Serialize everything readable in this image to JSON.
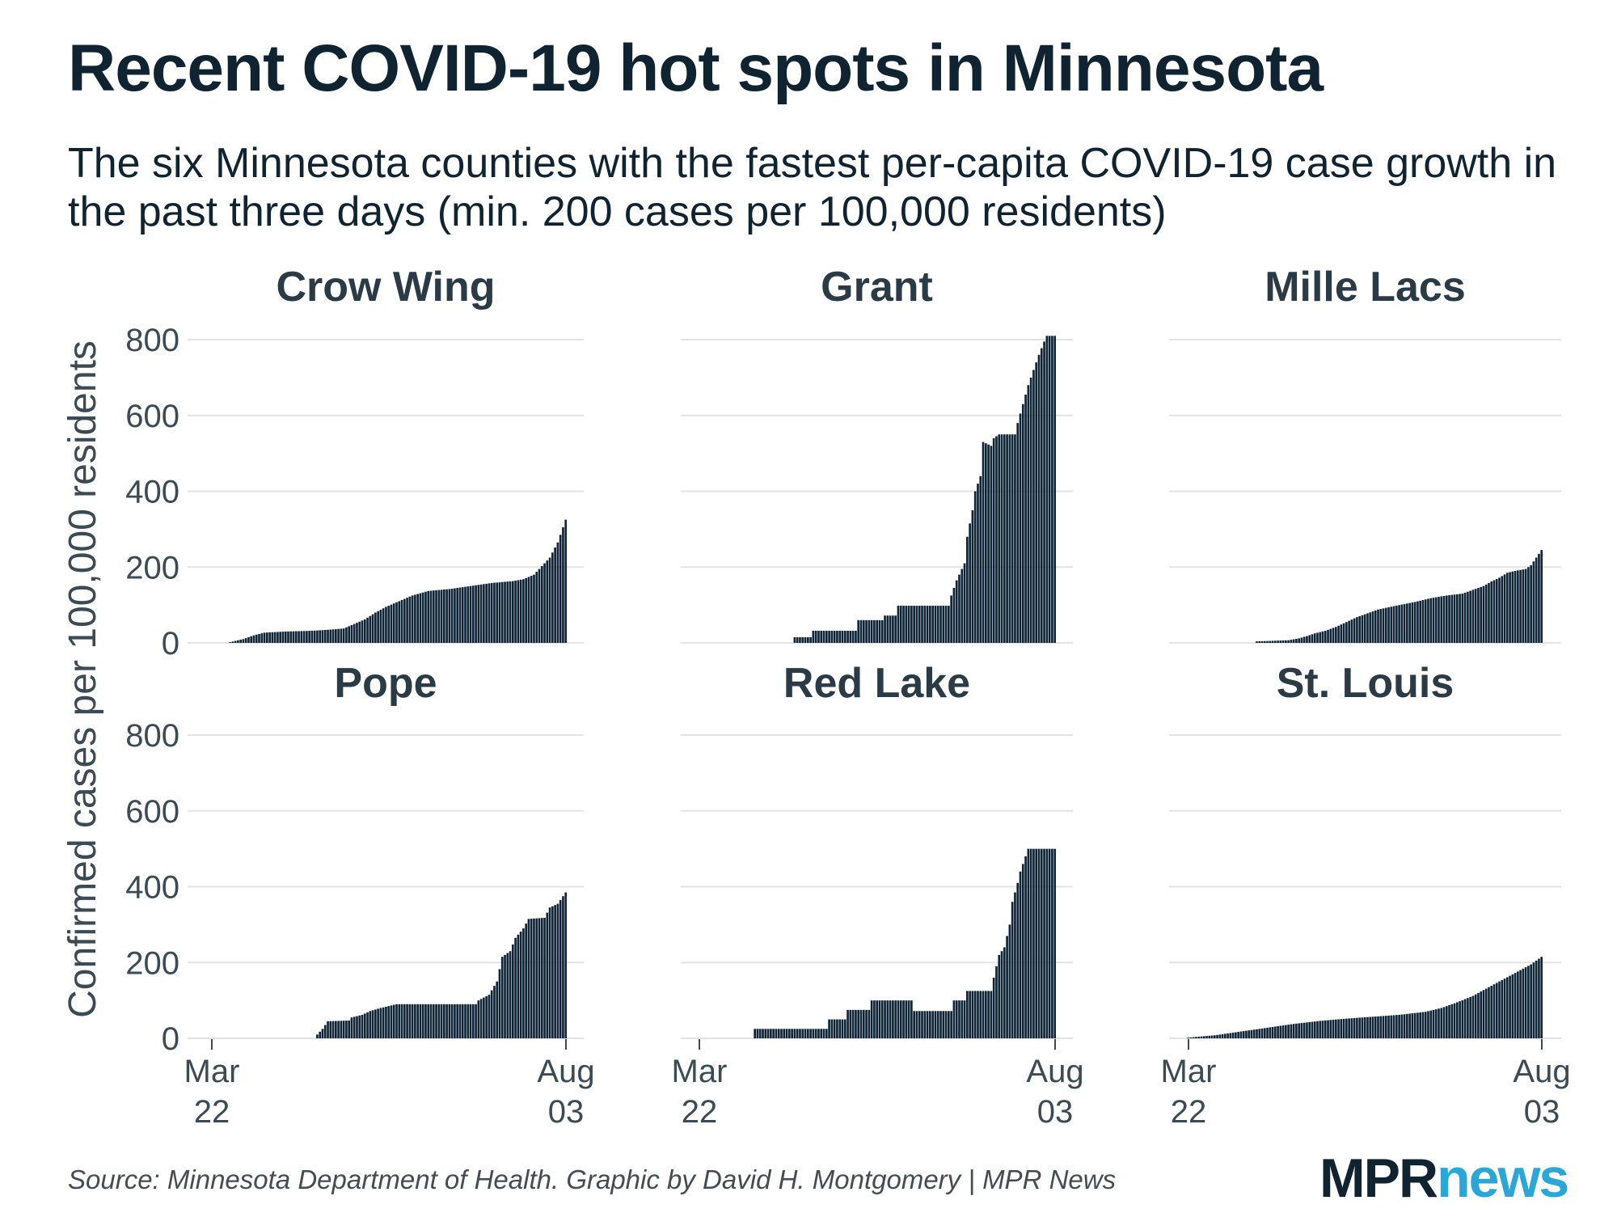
{
  "title": "Recent COVID-19 hot spots in Minnesota",
  "subtitle": "The six Minnesota counties with the fastest per-capita COVID-19 case growth in the past three days (min. 200 cases per 100,000 residents)",
  "source": "Source: Minnesota Department of Health. Graphic by David H. Montgomery | MPR News",
  "logo": {
    "part1": "MPR",
    "part2": "news"
  },
  "colors": {
    "bar": "#0f2537",
    "grid": "#e3e3e3",
    "text": "#0f2330",
    "accent": "#2aa7d6"
  },
  "chart_data": {
    "type": "bar",
    "title": "Recent COVID-19 hot spots in Minnesota",
    "ylabel": "Confirmed cases per 100,000 residents",
    "xlabel": "",
    "ylim": [
      0,
      800
    ],
    "yticks": [
      "0",
      "200",
      "400",
      "600",
      "800"
    ],
    "xtick_labels": [
      [
        "Mar",
        "22"
      ],
      [
        "Aug",
        "03"
      ]
    ],
    "panels": [
      {
        "name": "Crow Wing",
        "start_day": 7,
        "end_day": 134,
        "keypoints": [
          [
            7,
            2
          ],
          [
            12,
            10
          ],
          [
            16,
            20
          ],
          [
            20,
            27
          ],
          [
            28,
            30
          ],
          [
            38,
            32
          ],
          [
            45,
            35
          ],
          [
            50,
            38
          ],
          [
            54,
            50
          ],
          [
            58,
            62
          ],
          [
            62,
            80
          ],
          [
            66,
            95
          ],
          [
            71,
            110
          ],
          [
            76,
            125
          ],
          [
            82,
            137
          ],
          [
            90,
            142
          ],
          [
            98,
            150
          ],
          [
            106,
            158
          ],
          [
            114,
            163
          ],
          [
            118,
            168
          ],
          [
            122,
            180
          ],
          [
            124,
            195
          ],
          [
            128,
            225
          ],
          [
            131,
            265
          ],
          [
            133,
            305
          ],
          [
            134,
            325
          ]
        ]
      },
      {
        "name": "Grant",
        "start_day": 36,
        "end_day": 134,
        "keypoints": [
          [
            36,
            15
          ],
          [
            42,
            15
          ],
          [
            43,
            32
          ],
          [
            59,
            32
          ],
          [
            60,
            60
          ],
          [
            69,
            60
          ],
          [
            70,
            72
          ],
          [
            74,
            72
          ],
          [
            75,
            98
          ],
          [
            94,
            98
          ],
          [
            95,
            125
          ],
          [
            97,
            165
          ],
          [
            100,
            210
          ],
          [
            101,
            280
          ],
          [
            103,
            350
          ],
          [
            104,
            400
          ],
          [
            106,
            440
          ],
          [
            107,
            530
          ],
          [
            110,
            520
          ],
          [
            111,
            540
          ],
          [
            113,
            550
          ],
          [
            119,
            550
          ],
          [
            120,
            580
          ],
          [
            122,
            630
          ],
          [
            124,
            680
          ],
          [
            126,
            720
          ],
          [
            128,
            760
          ],
          [
            130,
            795
          ],
          [
            131,
            810
          ],
          [
            134,
            810
          ]
        ]
      },
      {
        "name": "Mille Lacs",
        "start_day": 26,
        "end_day": 134,
        "keypoints": [
          [
            26,
            4
          ],
          [
            38,
            7
          ],
          [
            42,
            12
          ],
          [
            45,
            18
          ],
          [
            48,
            25
          ],
          [
            52,
            32
          ],
          [
            56,
            42
          ],
          [
            60,
            55
          ],
          [
            64,
            68
          ],
          [
            68,
            78
          ],
          [
            72,
            88
          ],
          [
            78,
            97
          ],
          [
            86,
            108
          ],
          [
            92,
            118
          ],
          [
            98,
            125
          ],
          [
            104,
            130
          ],
          [
            108,
            140
          ],
          [
            112,
            150
          ],
          [
            115,
            162
          ],
          [
            118,
            172
          ],
          [
            121,
            185
          ],
          [
            124,
            190
          ],
          [
            128,
            195
          ],
          [
            130,
            205
          ],
          [
            132,
            225
          ],
          [
            134,
            245
          ]
        ]
      },
      {
        "name": "Pope",
        "start_day": 40,
        "end_day": 134,
        "keypoints": [
          [
            40,
            10
          ],
          [
            42,
            25
          ],
          [
            44,
            45
          ],
          [
            52,
            47
          ],
          [
            53,
            55
          ],
          [
            57,
            62
          ],
          [
            60,
            72
          ],
          [
            64,
            80
          ],
          [
            70,
            90
          ],
          [
            100,
            90
          ],
          [
            101,
            100
          ],
          [
            105,
            115
          ],
          [
            108,
            150
          ],
          [
            110,
            215
          ],
          [
            113,
            230
          ],
          [
            115,
            265
          ],
          [
            118,
            290
          ],
          [
            120,
            315
          ],
          [
            126,
            318
          ],
          [
            128,
            345
          ],
          [
            131,
            355
          ],
          [
            134,
            385
          ]
        ]
      },
      {
        "name": "Red Lake",
        "start_day": 21,
        "end_day": 134,
        "keypoints": [
          [
            21,
            25
          ],
          [
            48,
            25
          ],
          [
            49,
            50
          ],
          [
            55,
            50
          ],
          [
            56,
            75
          ],
          [
            64,
            75
          ],
          [
            65,
            100
          ],
          [
            80,
            100
          ],
          [
            81,
            72
          ],
          [
            95,
            72
          ],
          [
            96,
            100
          ],
          [
            100,
            100
          ],
          [
            101,
            125
          ],
          [
            110,
            125
          ],
          [
            111,
            160
          ],
          [
            113,
            220
          ],
          [
            115,
            240
          ],
          [
            117,
            300
          ],
          [
            118,
            360
          ],
          [
            120,
            410
          ],
          [
            121,
            440
          ],
          [
            123,
            480
          ],
          [
            124,
            500
          ],
          [
            134,
            500
          ]
        ]
      },
      {
        "name": "St. Louis",
        "start_day": 0,
        "end_day": 134,
        "keypoints": [
          [
            0,
            2
          ],
          [
            10,
            8
          ],
          [
            20,
            18
          ],
          [
            30,
            28
          ],
          [
            40,
            38
          ],
          [
            50,
            46
          ],
          [
            60,
            52
          ],
          [
            70,
            57
          ],
          [
            80,
            62
          ],
          [
            90,
            70
          ],
          [
            96,
            80
          ],
          [
            102,
            95
          ],
          [
            108,
            112
          ],
          [
            114,
            135
          ],
          [
            118,
            150
          ],
          [
            122,
            165
          ],
          [
            126,
            180
          ],
          [
            130,
            195
          ],
          [
            134,
            215
          ]
        ]
      }
    ]
  }
}
